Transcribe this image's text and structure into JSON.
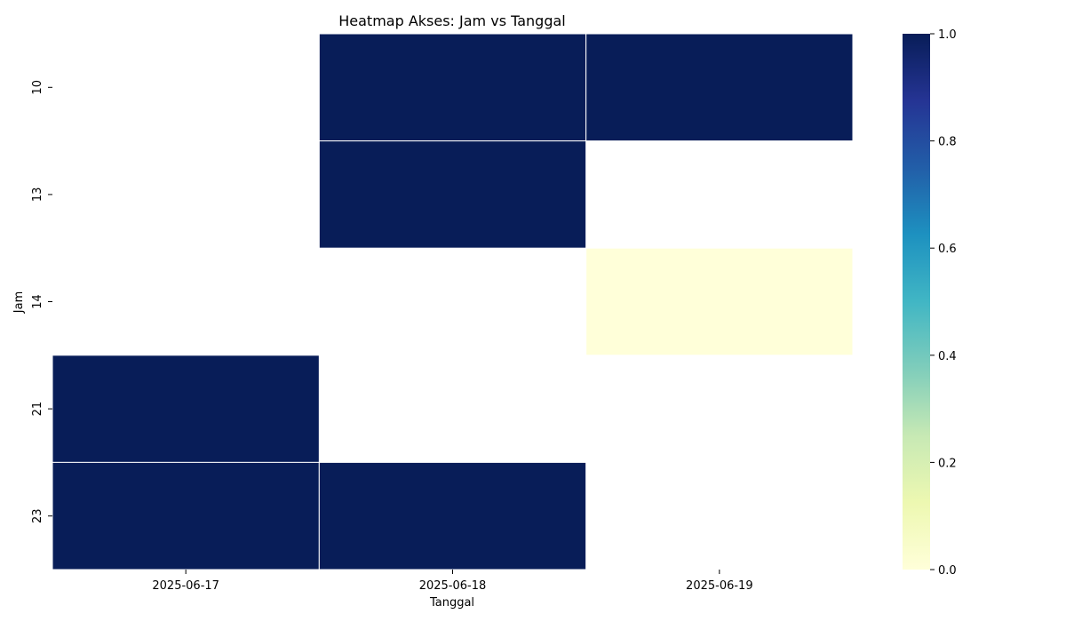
{
  "chart_data": {
    "type": "heatmap",
    "title": "Heatmap Akses: Jam vs Tanggal",
    "xlabel": "Tanggal",
    "ylabel": "Jam",
    "x_categories": [
      "2025-06-17",
      "2025-06-18",
      "2025-06-19"
    ],
    "y_categories": [
      "10",
      "13",
      "14",
      "21",
      "23"
    ],
    "values": [
      [
        null,
        1.0,
        1.0
      ],
      [
        null,
        1.0,
        null
      ],
      [
        null,
        null,
        0.0
      ],
      [
        1.0,
        null,
        null
      ],
      [
        1.0,
        1.0,
        null
      ]
    ],
    "colorbar": {
      "min": 0.0,
      "max": 1.0,
      "ticks": [
        "0.0",
        "0.2",
        "0.4",
        "0.6",
        "0.8",
        "1.0"
      ],
      "colormap": "YlGnBu",
      "colors": [
        "#ffffd9",
        "#edf8b1",
        "#c7e9b4",
        "#7fcdbb",
        "#41b6c4",
        "#1d91c0",
        "#225ea8",
        "#253494",
        "#081d58"
      ]
    }
  }
}
